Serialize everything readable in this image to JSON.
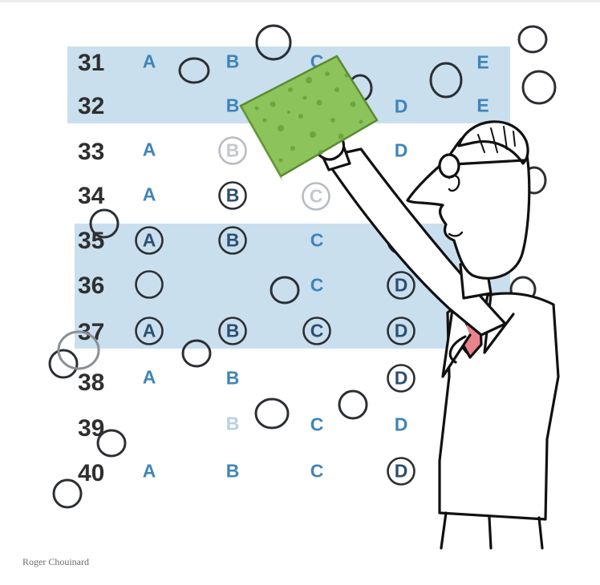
{
  "rows": [
    {
      "number": "31",
      "letters": {
        "A": "A",
        "B": "B",
        "C": "C",
        "E": "E"
      }
    },
    {
      "number": "32",
      "letters": {
        "B": "B",
        "D": "D",
        "E": "E"
      }
    },
    {
      "number": "33",
      "letters": {
        "A": "A",
        "B": "B",
        "D": "D"
      }
    },
    {
      "number": "34",
      "letters": {
        "A": "A",
        "B": "B",
        "C": "C"
      }
    },
    {
      "number": "35",
      "letters": {
        "A": "A",
        "B": "B",
        "C": "C",
        "D": "D"
      }
    },
    {
      "number": "36",
      "letters": {
        "C": "C",
        "D": "D"
      }
    },
    {
      "number": "37",
      "letters": {
        "A": "A",
        "B": "B",
        "C": "C",
        "D": "D"
      }
    },
    {
      "number": "38",
      "letters": {
        "A": "A",
        "B": "B",
        "D": "D"
      }
    },
    {
      "number": "39",
      "letters": {
        "B": "B",
        "C": "C",
        "D": "D"
      }
    },
    {
      "number": "40",
      "letters": {
        "A": "A",
        "B": "B",
        "C": "C",
        "D": "D"
      }
    }
  ],
  "credit": "Roger Chouinard",
  "colors": {
    "band": "#c9dfee",
    "letter": "#3f84b9",
    "number": "#2f2f2f",
    "sponge": "#8cc35a",
    "tie": "#e8838c"
  }
}
